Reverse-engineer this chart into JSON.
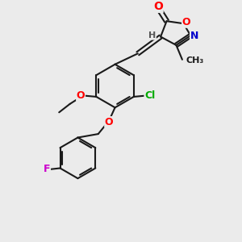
{
  "background_color": "#ebebeb",
  "bond_color": "#1a1a1a",
  "atom_colors": {
    "O": "#ff0000",
    "N": "#0000cc",
    "Cl": "#00aa00",
    "F": "#cc00cc",
    "H": "#555555",
    "C": "#1a1a1a"
  },
  "figsize": [
    3.0,
    3.0
  ],
  "dpi": 100,
  "lw": 1.5,
  "font_size": 9
}
